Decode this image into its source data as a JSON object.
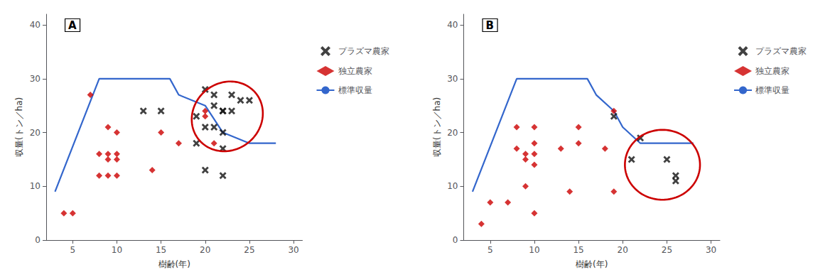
{
  "chart_data": [
    {
      "type": "scatter",
      "label": "A",
      "xlabel": "樹齢(年)",
      "ylabel": "収量(トン／ha)",
      "xlim": [
        2,
        31
      ],
      "ylim": [
        0,
        42
      ],
      "xticks": [
        5,
        10,
        15,
        20,
        25,
        30
      ],
      "yticks": [
        0,
        10,
        20,
        30,
        40
      ],
      "grid": false,
      "legend": "right",
      "series": [
        {
          "name": "プラズマ農家",
          "type": "scatter",
          "marker": "x",
          "color": "#111111",
          "x": [
            13,
            15,
            19,
            20,
            21,
            21,
            22,
            22,
            23,
            24,
            25,
            20,
            21,
            22,
            23,
            20,
            22,
            19,
            22
          ],
          "values": [
            24,
            24,
            23,
            28,
            27,
            25,
            24,
            24,
            27,
            26,
            26,
            21,
            21,
            20,
            24,
            13,
            12,
            18,
            17
          ]
        },
        {
          "name": "独立農家",
          "type": "scatter",
          "marker": "D",
          "color": "#cc0000",
          "x": [
            4,
            5,
            7,
            8,
            8,
            9,
            9,
            9,
            9,
            10,
            10,
            10,
            10,
            14,
            15,
            17,
            20,
            20,
            21
          ],
          "values": [
            5,
            5,
            27,
            16,
            12,
            21,
            16,
            15,
            12,
            20,
            16,
            15,
            12,
            13,
            20,
            18,
            24,
            23,
            18
          ]
        },
        {
          "name": "標準収量",
          "type": "line",
          "marker": "none",
          "color": "#3366cc",
          "x": [
            3,
            8,
            12,
            16,
            17,
            20,
            22,
            25,
            28
          ],
          "values": [
            9,
            30,
            30,
            30,
            27,
            25,
            20,
            18,
            18
          ]
        }
      ],
      "ellipse": {
        "cx": 22.5,
        "cy": 23.0,
        "width": 8.0,
        "height": 13.0,
        "angle": -5,
        "color": "#cc0000"
      }
    },
    {
      "type": "scatter",
      "label": "B",
      "xlabel": "樹齢(年)",
      "ylabel": "収量(トン／ha)",
      "xlim": [
        2,
        31
      ],
      "ylim": [
        0,
        42
      ],
      "xticks": [
        5,
        10,
        15,
        20,
        25,
        30
      ],
      "yticks": [
        0,
        10,
        20,
        30,
        40
      ],
      "grid": false,
      "legend": "right",
      "series": [
        {
          "name": "プラズマ農家",
          "type": "scatter",
          "marker": "x",
          "color": "#111111",
          "x": [
            19,
            21,
            22,
            25,
            26,
            26
          ],
          "values": [
            23,
            15,
            19,
            15,
            12,
            11
          ]
        },
        {
          "name": "独立農家",
          "type": "scatter",
          "marker": "D",
          "color": "#cc0000",
          "x": [
            4,
            5,
            7,
            8,
            8,
            9,
            9,
            9,
            10,
            10,
            10,
            10,
            10,
            13,
            14,
            15,
            15,
            18,
            19,
            19
          ],
          "values": [
            3,
            7,
            7,
            21,
            17,
            16,
            15,
            10,
            21,
            18,
            16,
            14,
            5,
            17,
            9,
            21,
            18,
            17,
            24,
            9
          ]
        },
        {
          "name": "標準収量",
          "type": "line",
          "marker": "none",
          "color": "#3366cc",
          "x": [
            3,
            8,
            12,
            16,
            17,
            19,
            20,
            22,
            25,
            28
          ],
          "values": [
            9,
            30,
            30,
            30,
            27,
            24,
            21,
            18,
            18,
            18
          ]
        }
      ],
      "ellipse": {
        "cx": 24.5,
        "cy": 14.0,
        "width": 8.5,
        "height": 13.0,
        "angle": 0,
        "color": "#cc0000"
      }
    }
  ]
}
